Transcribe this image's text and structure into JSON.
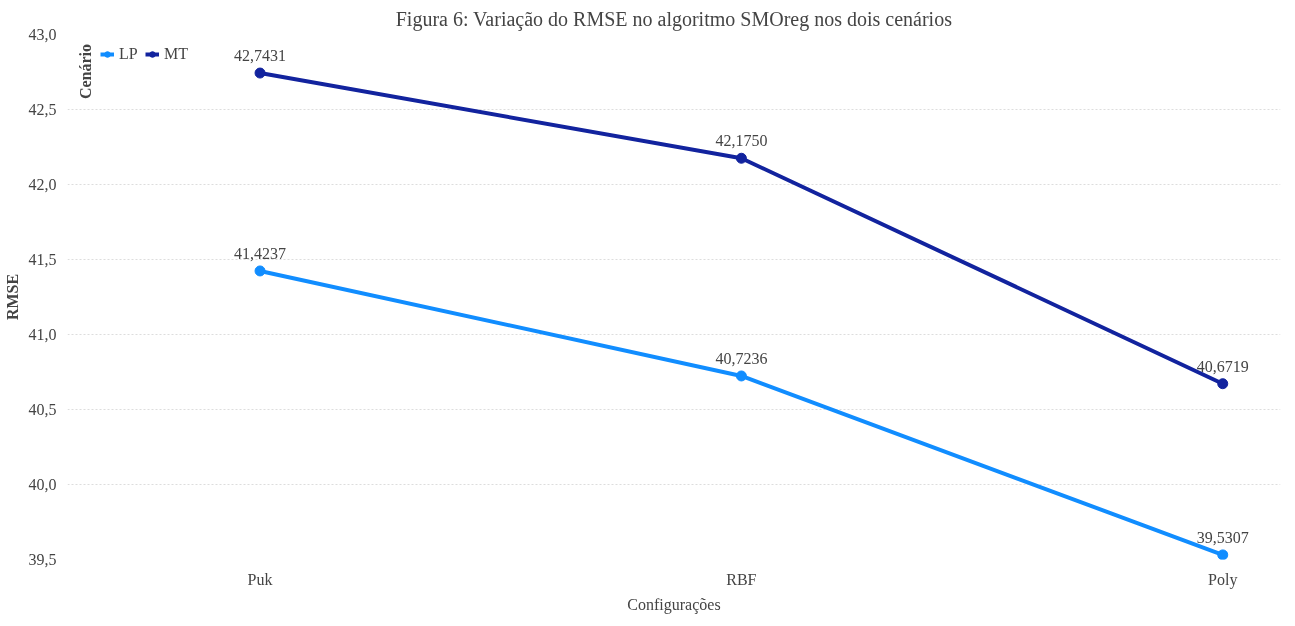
{
  "chart_data": {
    "type": "line",
    "title": "Figura 6: Variação do RMSE no algoritmo SMOreg nos dois cenários",
    "xlabel": "Configurações",
    "ylabel": "RMSE",
    "legend_title": "Cenário",
    "categories": [
      "Puk",
      "RBF",
      "Poly"
    ],
    "series": [
      {
        "name": "LP",
        "color": "#118dff",
        "values": [
          41.4237,
          40.7236,
          39.5307
        ],
        "value_labels": [
          "41,4237",
          "40,7236",
          "39,5307"
        ]
      },
      {
        "name": "MT",
        "color": "#12239e",
        "values": [
          42.7431,
          42.175,
          40.6719
        ],
        "value_labels": [
          "42,7431",
          "42,1750",
          "40,6719"
        ]
      }
    ],
    "ylim": [
      39.5,
      43.0
    ],
    "yticks": [
      {
        "value": 39.5,
        "label": "39,5"
      },
      {
        "value": 40.0,
        "label": "40,0"
      },
      {
        "value": 40.5,
        "label": "40,5"
      },
      {
        "value": 41.0,
        "label": "41,0"
      },
      {
        "value": 41.5,
        "label": "41,5"
      },
      {
        "value": 42.0,
        "label": "42,0"
      },
      {
        "value": 42.5,
        "label": "42,5"
      },
      {
        "value": 43.0,
        "label": "43,0"
      }
    ],
    "grid": "y",
    "legend": "top left",
    "marker": "circle",
    "line_style": "solid"
  }
}
